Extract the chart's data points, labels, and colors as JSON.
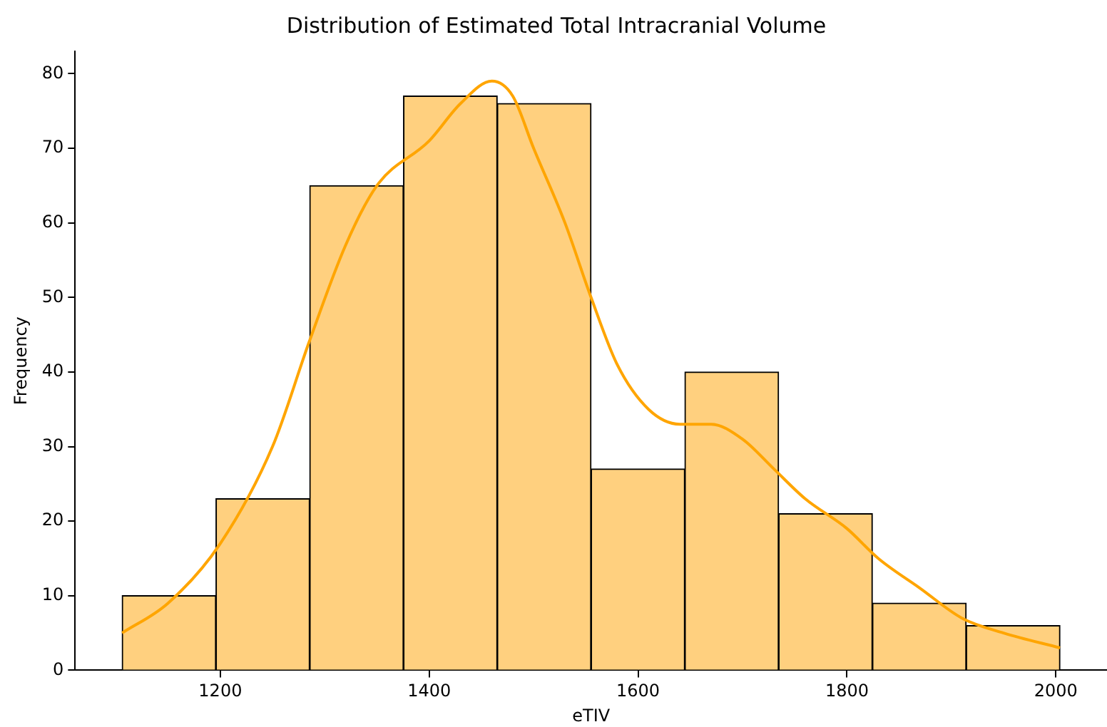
{
  "chart_data": {
    "type": "histogram",
    "title": "Distribution of Estimated Total Intracranial Volume",
    "xlabel": "eTIV",
    "ylabel": "Frequency",
    "bins": [
      1106,
      1195.8,
      1285.6,
      1375.4,
      1465.2,
      1555,
      1644.8,
      1734.6,
      1824.4,
      1914.2,
      2004
    ],
    "values": [
      10,
      23,
      65,
      77,
      76,
      27,
      40,
      21,
      9,
      6
    ],
    "color": "#ffd07f",
    "series": [
      {
        "type": "line",
        "color": "#ffa500",
        "x": [
          1106,
          1150,
          1200,
          1250,
          1285,
          1320,
          1350,
          1400,
          1430,
          1460,
          1480,
          1500,
          1530,
          1555,
          1580,
          1610,
          1640,
          1670,
          1700,
          1730,
          1760,
          1800,
          1830,
          1870,
          1910,
          1950,
          2004
        ],
        "values": [
          5,
          9,
          17,
          30,
          44,
          57,
          65,
          71,
          76,
          79,
          77,
          70,
          60,
          50,
          41,
          35,
          33,
          33,
          31,
          27,
          23,
          19,
          15,
          11,
          7,
          5,
          3
        ]
      }
    ],
    "xlim": [
      1061,
      2049
    ],
    "xticks": [
      1200,
      1400,
      1600,
      1800,
      2000
    ],
    "ylim": [
      0,
      83
    ],
    "yticks": [
      0,
      10,
      20,
      30,
      40,
      50,
      60,
      70,
      80
    ],
    "grid": false,
    "legend": false
  }
}
